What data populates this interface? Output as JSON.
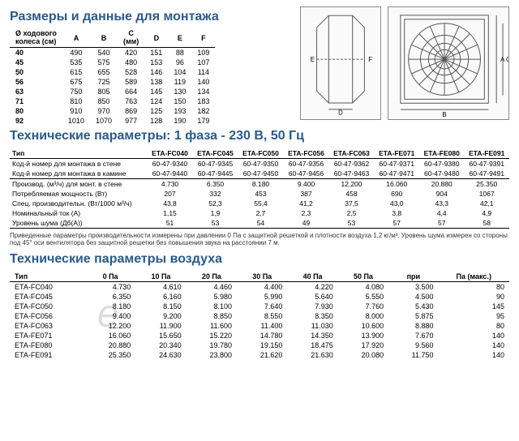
{
  "titles": {
    "dimensions": "Размеры и данные для монтажа",
    "tech": "Технические параметры: 1 фаза - 230 В, 50 Гц",
    "air": "Технические параметры воздуха"
  },
  "dim": {
    "header_wheel_l1": "Ø ходового",
    "header_wheel_l2": "колеса (см)",
    "col_labels": [
      "A",
      "B",
      "C",
      "D",
      "E",
      "F"
    ],
    "unit": "(мм)",
    "rows": [
      {
        "k": "40",
        "v": [
          "490",
          "540",
          "420",
          "151",
          "88",
          "109"
        ]
      },
      {
        "k": "45",
        "v": [
          "535",
          "575",
          "480",
          "153",
          "96",
          "107"
        ]
      },
      {
        "k": "50",
        "v": [
          "615",
          "655",
          "528",
          "146",
          "104",
          "114"
        ]
      },
      {
        "k": "56",
        "v": [
          "675",
          "725",
          "589",
          "138",
          "119",
          "140"
        ]
      },
      {
        "k": "63",
        "v": [
          "750",
          "805",
          "664",
          "145",
          "130",
          "134"
        ]
      },
      {
        "k": "71",
        "v": [
          "810",
          "850",
          "763",
          "124",
          "150",
          "183"
        ]
      },
      {
        "k": "80",
        "v": [
          "910",
          "970",
          "869",
          "125",
          "193",
          "182"
        ]
      },
      {
        "k": "92",
        "v": [
          "1010",
          "1070",
          "977",
          "128",
          "190",
          "179"
        ]
      }
    ]
  },
  "tech": {
    "type_label": "Тип",
    "models": [
      "ETA-FC040",
      "ETA-FC045",
      "ETA-FC050",
      "ETA-FC056",
      "ETA-FC063",
      "ETA-FE071",
      "ETA-FE080",
      "ETA-FE091"
    ],
    "rows": [
      {
        "l": "Код-й номер для монтажа в стене",
        "v": [
          "60-47-9340",
          "60-47-9345",
          "60-47-9350",
          "60-47-9356",
          "60-47-9362",
          "60-47-9371",
          "60-47-9380",
          "60-47-9391"
        ]
      },
      {
        "l": "Код-й номер для монтажа в камине",
        "v": [
          "60-47-9440",
          "60-47-9445",
          "60-47-9450",
          "60-47-9456",
          "60-47-9463",
          "60-47-9471",
          "60-47-9480",
          "60-47-9491"
        ]
      },
      {
        "l": "Производ. (м³/ч) для монт. в стене",
        "v": [
          "4.730",
          "6.350",
          "8.180",
          "9.400",
          "12.200",
          "16.060",
          "20.880",
          "25.350"
        ]
      },
      {
        "l": "Потребляемая мощность (Вт)",
        "v": [
          "207",
          "332",
          "453",
          "387",
          "458",
          "690",
          "904",
          "1067"
        ]
      },
      {
        "l": "Спец. производительн. (Вт/1000 м³/ч)",
        "v": [
          "43,8",
          "52,3",
          "55,4",
          "41,2",
          "37,5",
          "43,0",
          "43,3",
          "42,1"
        ]
      },
      {
        "l": "Номинальный ток (А)",
        "v": [
          "1,15",
          "1,9",
          "2,7",
          "2,3",
          "2,5",
          "3,8",
          "4,4",
          "4,9"
        ]
      },
      {
        "l": "Уровень шума (Дб(А))",
        "v": [
          "51",
          "53",
          "54",
          "49",
          "53",
          "57",
          "57",
          "58"
        ]
      }
    ],
    "note": "Приведенные параметры производительности измерены при давлении 0 Па с защитной решеткой и плотности воздуха 1,2 кг/м³. Уровень шума измерен со стороны под 45° оси вентилятора без защитной решетки без повышения звука на расстоянии 7 м."
  },
  "air": {
    "type_label": "Тип",
    "cols": [
      "0 Па",
      "10 Па",
      "20 Па",
      "30 Па",
      "40 Па",
      "50 Па",
      "при",
      "Па (макс.)"
    ],
    "rows": [
      {
        "t": "ETA-FC040",
        "v": [
          "4.730",
          "4.610",
          "4.460",
          "4.400",
          "4.220",
          "4.080",
          "3.500",
          "80"
        ]
      },
      {
        "t": "ETA-FC045",
        "v": [
          "6.350",
          "6.160",
          "5.980",
          "5.990",
          "5.640",
          "5.550",
          "4.500",
          "90"
        ]
      },
      {
        "t": "ETA-FC050",
        "v": [
          "8.180",
          "8.150",
          "8.100",
          "7.640",
          "7.930",
          "7.760",
          "5.430",
          "145"
        ]
      },
      {
        "t": "ETA-FC056",
        "v": [
          "9.400",
          "9.200",
          "8.850",
          "8.550",
          "8.350",
          "8.000",
          "5.875",
          "95"
        ]
      },
      {
        "t": "ETA-FC063",
        "v": [
          "12.200",
          "11.900",
          "11.600",
          "11.400",
          "11.030",
          "10.600",
          "8.880",
          "80"
        ]
      },
      {
        "t": "ETA-FE071",
        "v": [
          "16.060",
          "15.650",
          "15.220",
          "14.780",
          "14.350",
          "13.900",
          "7.670",
          "140"
        ]
      },
      {
        "t": "ETA-FE080",
        "v": [
          "20.880",
          "20.340",
          "19.780",
          "19.150",
          "18.475",
          "17.920",
          "9.560",
          "140"
        ]
      },
      {
        "t": "ETA-FE091",
        "v": [
          "25.350",
          "24.630",
          "23.800",
          "21.620",
          "21.630",
          "20.080",
          "11.750",
          "140"
        ]
      }
    ]
  },
  "colors": {
    "heading": "#2a5a8a",
    "border": "#000",
    "grid": "#888"
  },
  "diagram": {
    "side_w": 100,
    "side_h": 140,
    "front_w": 150,
    "front_h": 140,
    "labels": {
      "A": "A",
      "B": "B",
      "C": "C",
      "D": "D",
      "E": "E",
      "F": "F"
    }
  }
}
